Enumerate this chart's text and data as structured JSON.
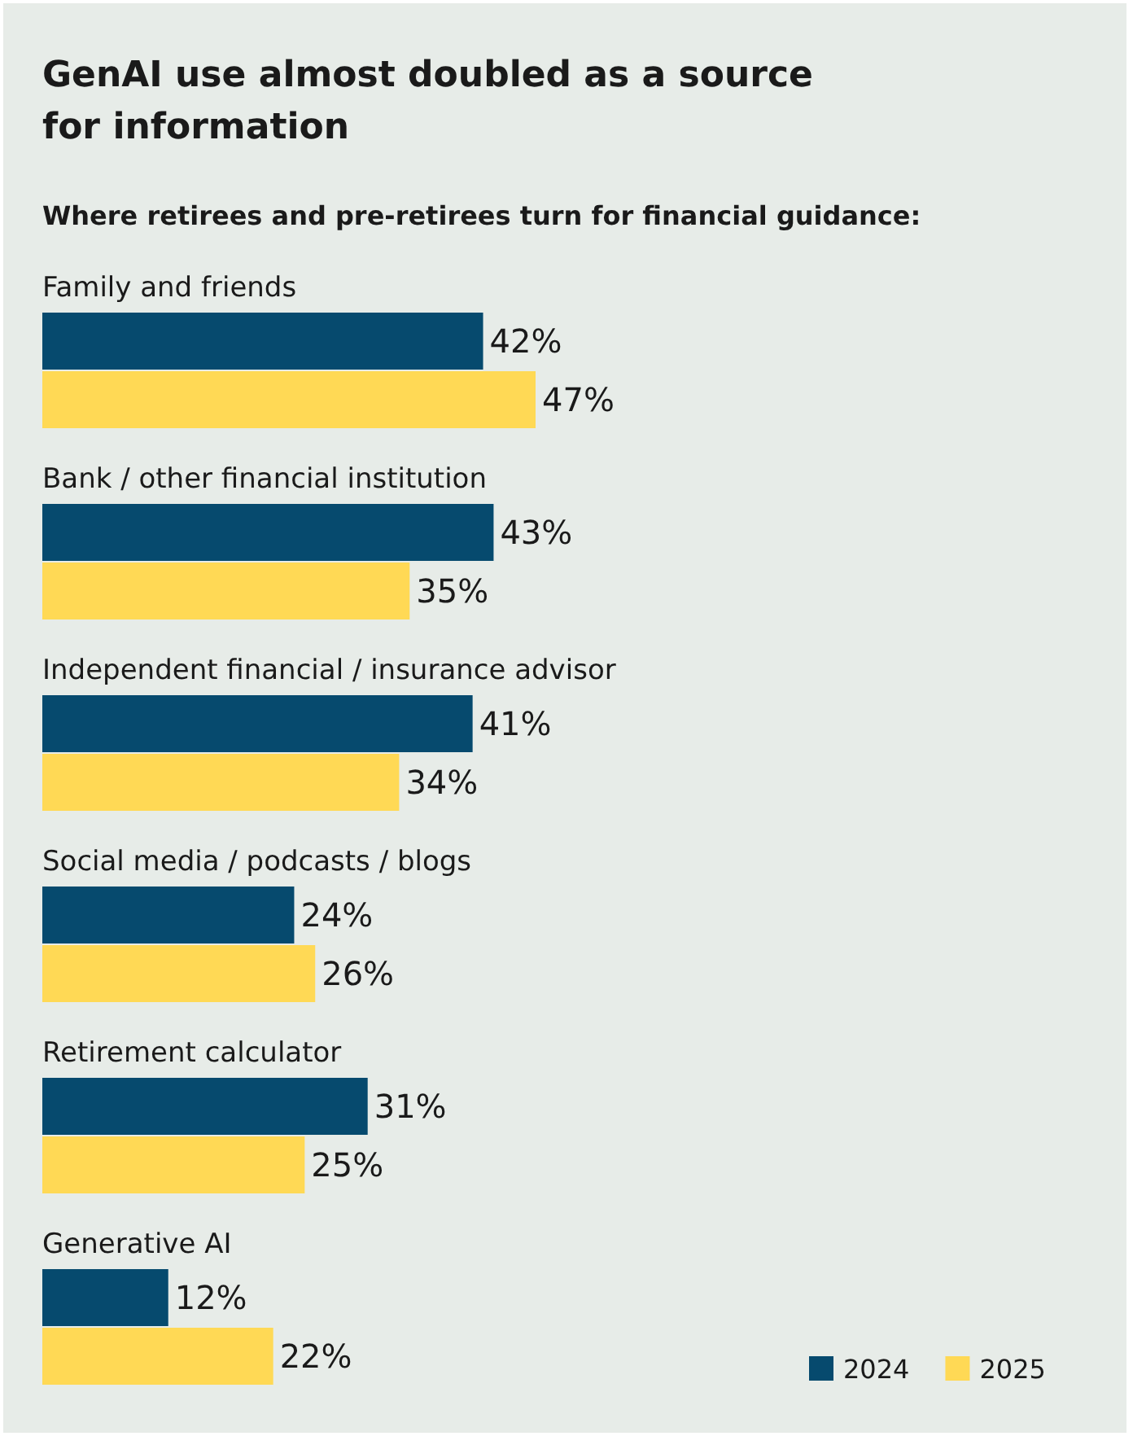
{
  "chart_data": {
    "type": "bar",
    "orientation": "horizontal",
    "title": "GenAI use almost doubled as a source for information",
    "subtitle": "Where retirees and pre-retirees turn for financial guidance:",
    "categories": [
      "Family and friends",
      "Bank / other financial institution",
      "Independent financial / insurance advisor",
      "Social media / podcasts / blogs",
      "Retirement calculator",
      "Generative AI"
    ],
    "series": [
      {
        "name": "2024",
        "color": "#064a6e",
        "values": [
          42,
          43,
          41,
          24,
          31,
          12
        ],
        "value_labels": [
          "42%",
          "43%",
          "41%",
          "24%",
          "31%",
          "12%"
        ]
      },
      {
        "name": "2025",
        "color": "#ffd955",
        "values": [
          47,
          35,
          34,
          26,
          25,
          22
        ],
        "value_labels": [
          "47%",
          "35%",
          "34%",
          "26%",
          "25%",
          "22%"
        ]
      }
    ],
    "legend": "bottom right"
  }
}
